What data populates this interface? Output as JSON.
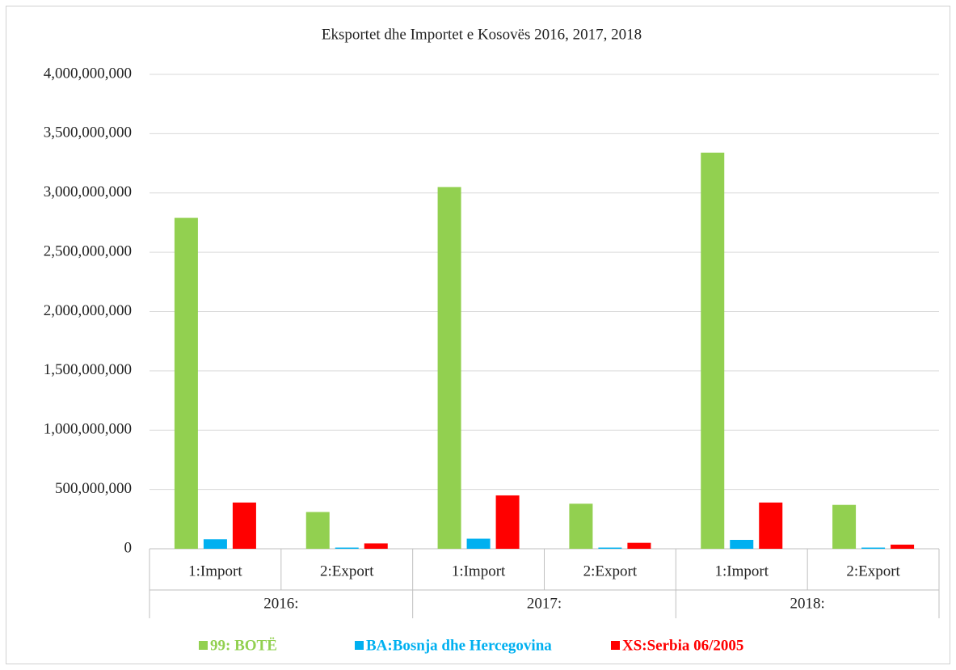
{
  "chart_data": {
    "type": "bar",
    "title": "Eksportet dhe Importet e Kosovës 2016, 2017, 2018",
    "categories": [
      "1:Import",
      "2:Export",
      "1:Import",
      "2:Export",
      "1:Import",
      "2:Export"
    ],
    "groups": [
      "2016:",
      "2017:",
      "2018:"
    ],
    "series": [
      {
        "name": "99: BOTË",
        "color": "#92d050",
        "values": [
          2790000000,
          310000000,
          3050000000,
          380000000,
          3340000000,
          370000000
        ]
      },
      {
        "name": "BA:Bosnja dhe Hercegovina",
        "color": "#00b0f0",
        "values": [
          80000000,
          10000000,
          85000000,
          10000000,
          75000000,
          10000000
        ]
      },
      {
        "name": "XS:Serbia 06/2005",
        "color": "#ff0000",
        "values": [
          390000000,
          45000000,
          450000000,
          50000000,
          390000000,
          35000000
        ]
      }
    ],
    "ylim": [
      0,
      4000000000
    ],
    "yticks": [
      0,
      {
        "value": 500000000,
        "label": "500,000,000"
      },
      {
        "value": 1000000000,
        "label": "1,000,000,000"
      },
      {
        "value": 1500000000,
        "label": "1,500,000,000"
      },
      {
        "value": 2000000000,
        "label": "2,000,000,000"
      },
      {
        "value": 2500000000,
        "label": "2,500,000,000"
      },
      {
        "value": 3000000000,
        "label": "3,000,000,000"
      },
      {
        "value": 3500000000,
        "label": "3,500,000,000"
      },
      {
        "value": 4000000000,
        "label": "4,000,000,000"
      }
    ],
    "grid": true,
    "legend": "bottom"
  }
}
